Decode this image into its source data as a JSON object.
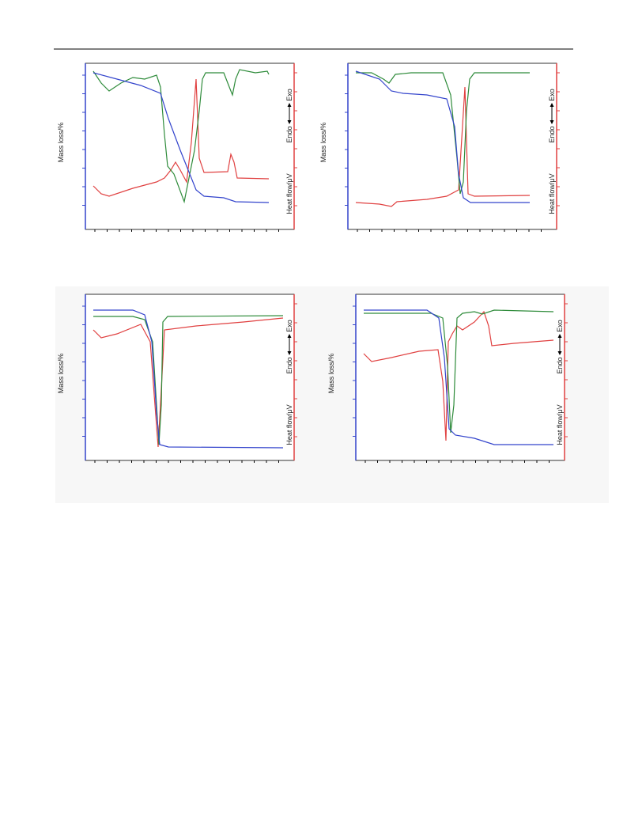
{
  "panels": [
    {
      "y_label": "Mass loss/%",
      "y2_label": "Heat flow/μV",
      "endo": "Endo",
      "exo": "Exo"
    },
    {
      "y_label": "Mass loss/%",
      "y2_label": "Heat flow/μV",
      "endo": "Endo",
      "exo": "Exo"
    },
    {
      "y_label": "Mass loss/%",
      "y2_label": "Heat flow/μV",
      "endo": "Endo",
      "exo": "Exo"
    },
    {
      "y_label": "Mass loss/%",
      "y2_label": "Heat flow/μV",
      "endo": "Endo",
      "exo": "Exo"
    }
  ]
}
